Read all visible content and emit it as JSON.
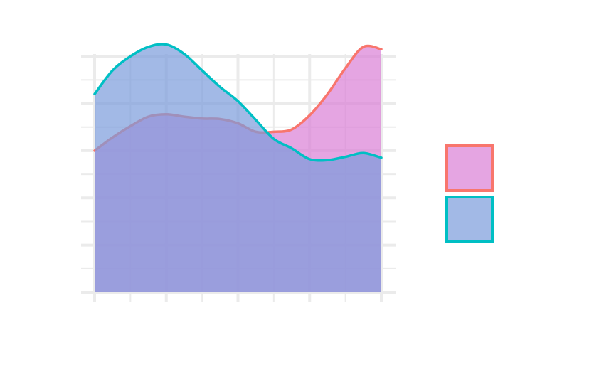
{
  "chart_data": {
    "type": "area",
    "title": "",
    "xlabel": "",
    "ylabel": "",
    "xlim": [
      0,
      8
    ],
    "ylim": [
      0,
      5.5
    ],
    "grid": true,
    "legend_position": "right",
    "x": [
      0,
      0.5,
      1,
      1.5,
      2,
      2.5,
      3,
      3.5,
      4,
      4.5,
      5,
      5.5,
      6,
      6.5,
      7,
      7.5,
      8
    ],
    "series": [
      {
        "color": "#F8766D",
        "fill": "#DA7FD6",
        "values": [
          3,
          3.28,
          3.52,
          3.72,
          3.77,
          3.72,
          3.68,
          3.67,
          3.58,
          3.4,
          3.4,
          3.45,
          3.75,
          4.2,
          4.75,
          5.2,
          5.15
        ]
      },
      {
        "color": "#00BFC4",
        "fill": "#7B9BDC",
        "values": [
          4.2,
          4.7,
          5.0,
          5.2,
          5.25,
          5.05,
          4.7,
          4.35,
          4.05,
          3.65,
          3.25,
          3.05,
          2.82,
          2.8,
          2.87,
          2.95,
          2.85
        ]
      }
    ]
  }
}
